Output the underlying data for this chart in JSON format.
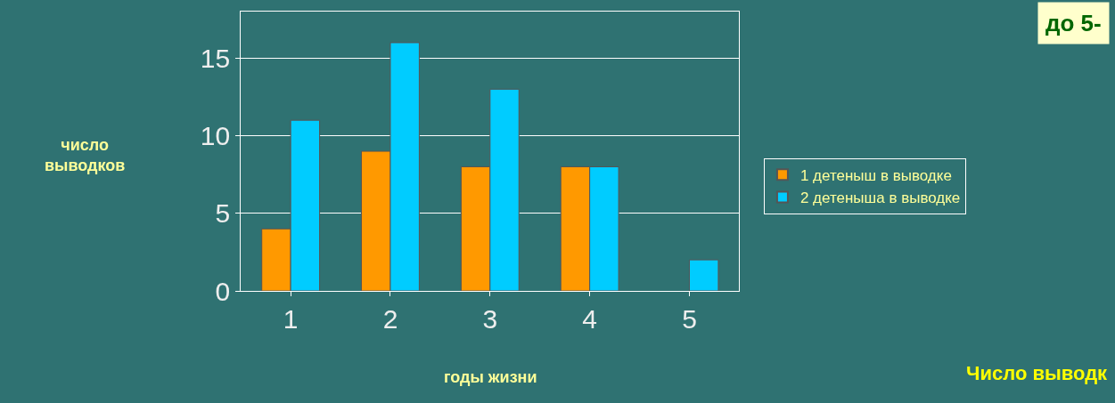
{
  "chart_data": {
    "type": "bar",
    "categories": [
      "1",
      "2",
      "3",
      "4",
      "5"
    ],
    "series": [
      {
        "name": "1 детеныш в выводке",
        "color": "#ff9900",
        "values": [
          4,
          9,
          8,
          8,
          null
        ]
      },
      {
        "name": "2 детеныша в выводке",
        "color": "#00ccff",
        "values": [
          11,
          16,
          13,
          8,
          2
        ]
      }
    ],
    "ylim": [
      0,
      18
    ],
    "yticks": [
      0,
      5,
      10,
      15
    ],
    "grid": "y",
    "legend": "right",
    "xlabel": "годы жизни",
    "ylabel": "число выводков",
    "annotations": [
      "до 5-",
      "Число выводк"
    ]
  }
}
